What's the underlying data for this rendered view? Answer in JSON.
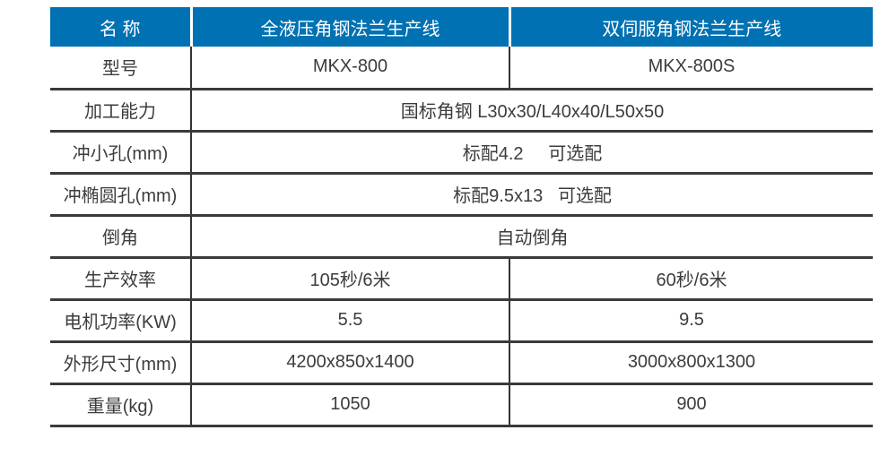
{
  "table": {
    "header": {
      "name_label": "名 称",
      "product1": "全液压角钢法兰生产线",
      "product2": "双伺服角钢法兰生产线"
    },
    "rows": [
      {
        "label": "型号",
        "product1": "MKX-800",
        "product2": "MKX-800S"
      },
      {
        "label": "加工能力",
        "value": "国标角钢 L30x30/L40x40/L50x50"
      },
      {
        "label": "冲小孔(mm)",
        "value": "标配4.2     可选配"
      },
      {
        "label": "冲椭圆孔(mm)",
        "value": "标配9.5x13   可选配"
      },
      {
        "label": "倒角",
        "value": "自动倒角"
      },
      {
        "label": "生产效率",
        "product1": "105秒/6米",
        "product2": "60秒/6米"
      },
      {
        "label": "电机功率(KW)",
        "product1": "5.5",
        "product2": "9.5"
      },
      {
        "label": "外形尺寸(mm)",
        "product1": "4200x850x1400",
        "product2": "3000x800x1300"
      },
      {
        "label": "重量(kg)",
        "product1": "1050",
        "product2": "900"
      }
    ],
    "colors": {
      "header_bg": "#0071b2",
      "header_text": "#ffffff",
      "body_text": "#3c3c3c",
      "grid_line": "#3a3a3a"
    }
  }
}
